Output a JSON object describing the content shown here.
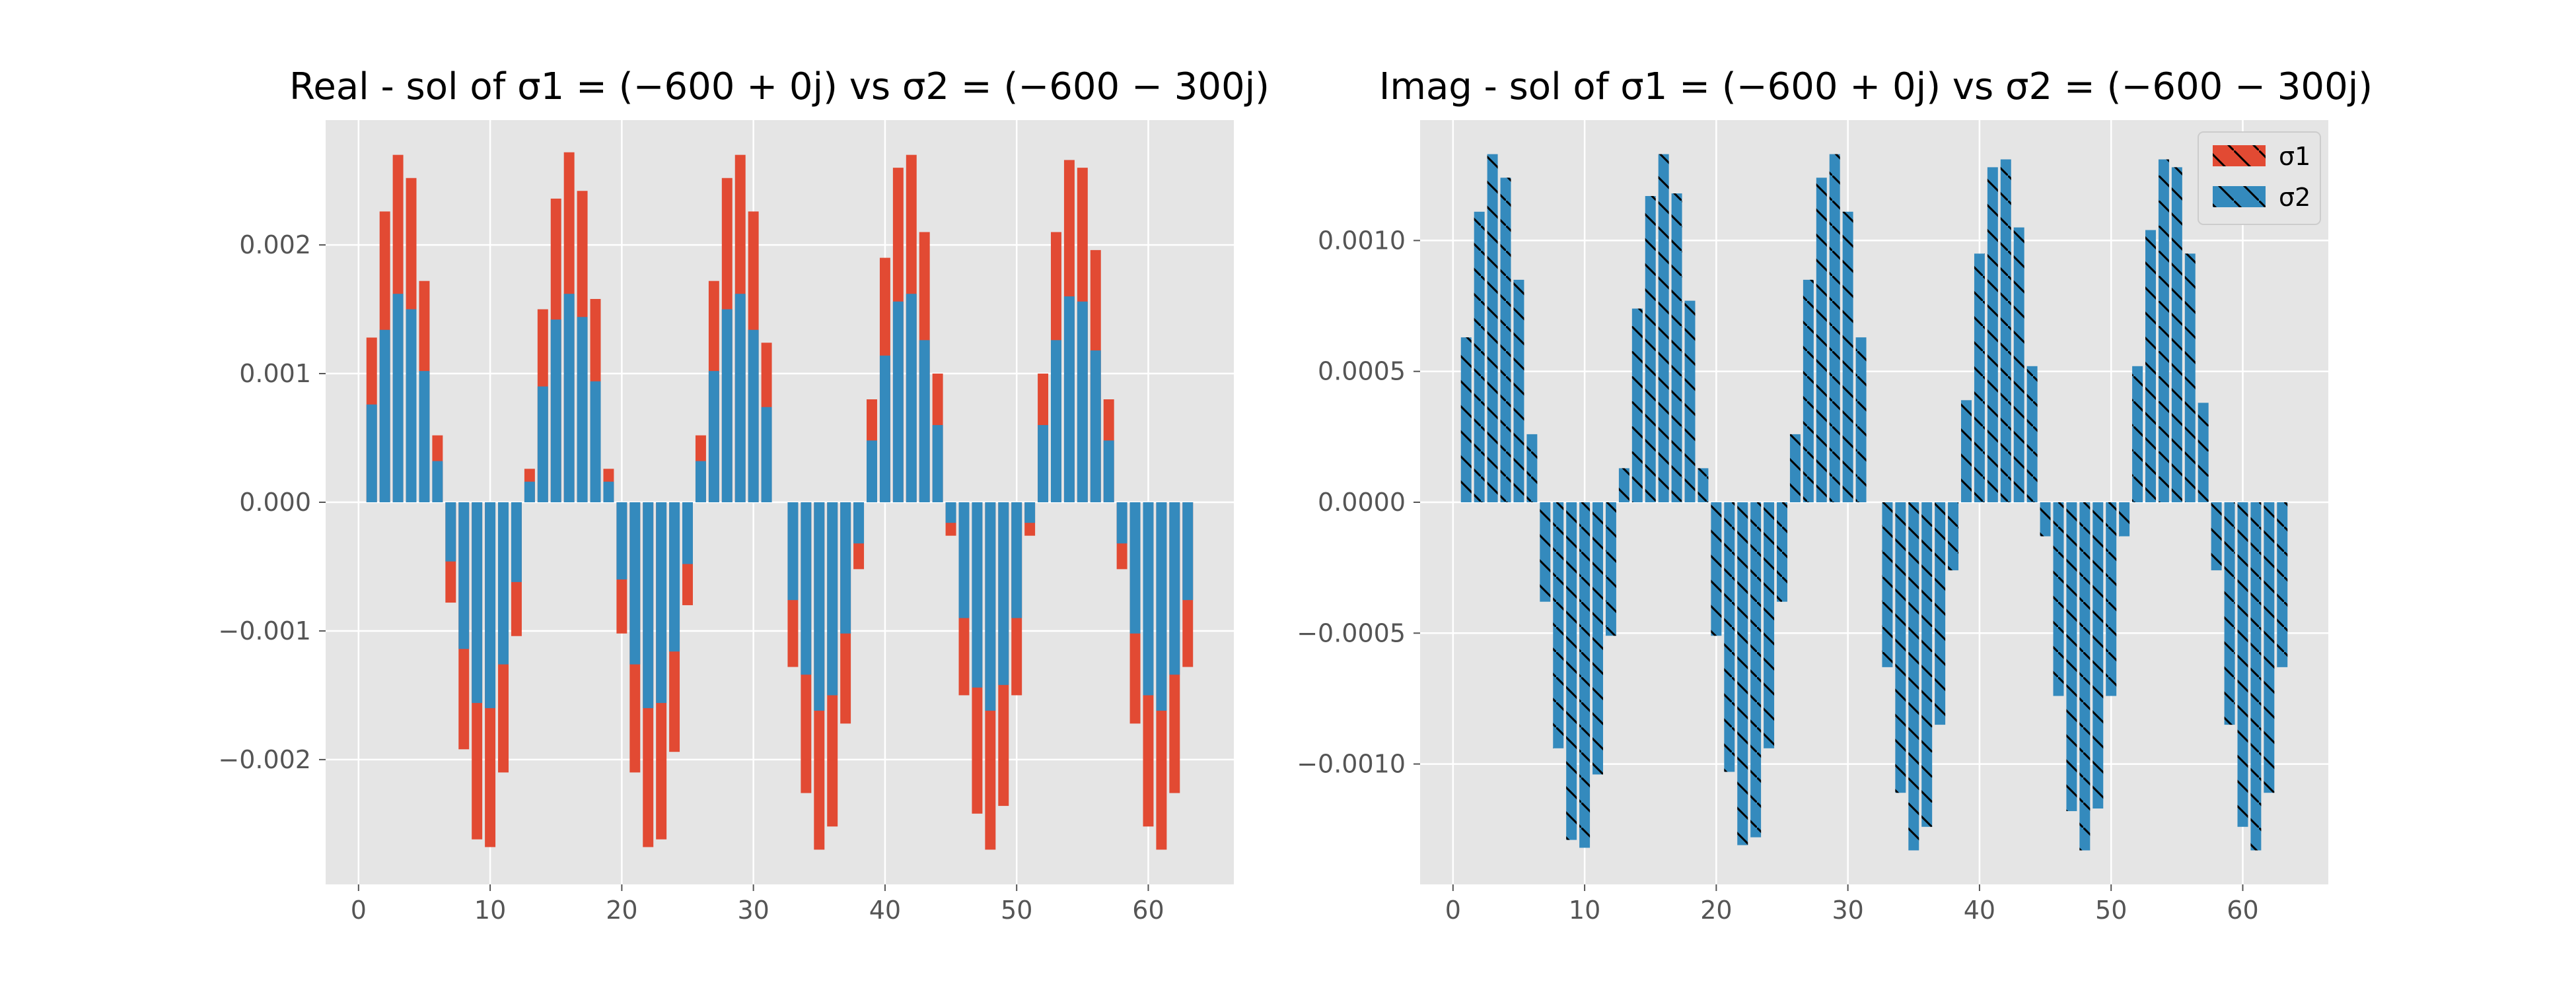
{
  "colors": {
    "sigma1": "#E24A33",
    "sigma2": "#348ABD",
    "axes_bg": "#E5E5E5",
    "grid": "#FFFFFF",
    "hatch": "#000000"
  },
  "legend": {
    "placement": "top-right",
    "entries": [
      "σ1",
      "σ2"
    ]
  },
  "chart_data": [
    {
      "type": "bar",
      "title": "Real - sol of σ1 = (−600 + 0j) vs σ2 = (−600 − 300j)",
      "xlim": [
        -2.5,
        66.5
      ],
      "ylim": [
        -0.00297,
        0.00297
      ],
      "xticks": [
        0,
        10,
        20,
        30,
        40,
        50,
        60
      ],
      "xtick_labels": [
        "0",
        "10",
        "20",
        "30",
        "40",
        "50",
        "60"
      ],
      "yticks": [
        -0.002,
        -0.001,
        0.0,
        0.001,
        0.002
      ],
      "ytick_labels": [
        "−0.002",
        "−0.001",
        "0.000",
        "0.001",
        "0.002"
      ],
      "grid": true,
      "hatch": false,
      "x": [
        1,
        2,
        3,
        4,
        5,
        6,
        7,
        8,
        9,
        10,
        11,
        12,
        13,
        14,
        15,
        16,
        17,
        18,
        19,
        20,
        21,
        22,
        23,
        24,
        25,
        26,
        27,
        28,
        29,
        30,
        31,
        32,
        33,
        34,
        35,
        36,
        37,
        38,
        39,
        40,
        41,
        42,
        43,
        44,
        45,
        46,
        47,
        48,
        49,
        50,
        51,
        52,
        53,
        54,
        55,
        56,
        57,
        58,
        59,
        60,
        61,
        62,
        63
      ],
      "series": [
        {
          "name": "σ1",
          "values": [
            0.00128,
            0.00226,
            0.0027,
            0.00252,
            0.00172,
            0.00052,
            -0.00078,
            -0.00192,
            -0.00262,
            -0.00268,
            -0.0021,
            -0.00104,
            0.00026,
            0.0015,
            0.00236,
            0.00272,
            0.00242,
            0.00158,
            0.00026,
            -0.00102,
            -0.0021,
            -0.00268,
            -0.00262,
            -0.00194,
            -0.0008,
            0.00052,
            0.00172,
            0.00252,
            0.0027,
            0.00226,
            0.00124,
            0.0,
            -0.00128,
            -0.00226,
            -0.0027,
            -0.00252,
            -0.00172,
            -0.00052,
            0.0008,
            0.0019,
            0.0026,
            0.0027,
            0.0021,
            0.001,
            -0.00026,
            -0.0015,
            -0.00242,
            -0.0027,
            -0.00236,
            -0.0015,
            -0.00026,
            0.001,
            0.0021,
            0.00266,
            0.0026,
            0.00196,
            0.0008,
            -0.00052,
            -0.00172,
            -0.00252,
            -0.0027,
            -0.00226,
            -0.00128
          ]
        },
        {
          "name": "σ2",
          "values": [
            0.00076,
            0.00134,
            0.00162,
            0.0015,
            0.00102,
            0.00032,
            -0.00046,
            -0.00114,
            -0.00156,
            -0.0016,
            -0.00126,
            -0.00062,
            0.00016,
            0.0009,
            0.00142,
            0.00162,
            0.00144,
            0.00094,
            0.00016,
            -0.0006,
            -0.00126,
            -0.0016,
            -0.00156,
            -0.00116,
            -0.00048,
            0.00032,
            0.00102,
            0.0015,
            0.00162,
            0.00134,
            0.00074,
            0.0,
            -0.00076,
            -0.00134,
            -0.00162,
            -0.0015,
            -0.00102,
            -0.00032,
            0.00048,
            0.00114,
            0.00156,
            0.00162,
            0.00126,
            0.0006,
            -0.00016,
            -0.0009,
            -0.00144,
            -0.00162,
            -0.00142,
            -0.0009,
            -0.00016,
            0.0006,
            0.00126,
            0.0016,
            0.00156,
            0.00118,
            0.00048,
            -0.00032,
            -0.00102,
            -0.0015,
            -0.00162,
            -0.00134,
            -0.00076
          ]
        }
      ]
    },
    {
      "type": "bar",
      "title": "Imag - sol of σ1 = (−600 + 0j) vs σ2 = (−600 − 300j)",
      "xlim": [
        -2.5,
        66.5
      ],
      "ylim": [
        -0.00146,
        0.00146
      ],
      "xticks": [
        0,
        10,
        20,
        30,
        40,
        50,
        60
      ],
      "xtick_labels": [
        "0",
        "10",
        "20",
        "30",
        "40",
        "50",
        "60"
      ],
      "yticks": [
        -0.001,
        -0.0005,
        0.0,
        0.0005,
        0.001
      ],
      "ytick_labels": [
        "−0.0010",
        "−0.0005",
        "0.0000",
        "0.0005",
        "0.0010"
      ],
      "grid": true,
      "hatch": true,
      "x": [
        1,
        2,
        3,
        4,
        5,
        6,
        7,
        8,
        9,
        10,
        11,
        12,
        13,
        14,
        15,
        16,
        17,
        18,
        19,
        20,
        21,
        22,
        23,
        24,
        25,
        26,
        27,
        28,
        29,
        30,
        31,
        32,
        33,
        34,
        35,
        36,
        37,
        38,
        39,
        40,
        41,
        42,
        43,
        44,
        45,
        46,
        47,
        48,
        49,
        50,
        51,
        52,
        53,
        54,
        55,
        56,
        57,
        58,
        59,
        60,
        61,
        62,
        63
      ],
      "series": [
        {
          "name": "σ1",
          "values": [
            0,
            0,
            0,
            0,
            0,
            0,
            0,
            0,
            0,
            0,
            0,
            0,
            0,
            0,
            0,
            0,
            0,
            0,
            0,
            0,
            0,
            0,
            0,
            0,
            0,
            0,
            0,
            0,
            0,
            0,
            0,
            0,
            0,
            0,
            0,
            0,
            0,
            0,
            0,
            0,
            0,
            0,
            0,
            0,
            0,
            0,
            0,
            0,
            0,
            0,
            0,
            0,
            0,
            0,
            0,
            0,
            0,
            0,
            0,
            0,
            0,
            0,
            0
          ]
        },
        {
          "name": "σ2",
          "values": [
            0.00063,
            0.00111,
            0.00133,
            0.00124,
            0.00085,
            0.00026,
            -0.00038,
            -0.00094,
            -0.00129,
            -0.00132,
            -0.00104,
            -0.00051,
            0.00013,
            0.00074,
            0.00117,
            0.00133,
            0.00118,
            0.00077,
            0.00013,
            -0.00051,
            -0.00103,
            -0.00131,
            -0.00128,
            -0.00094,
            -0.00038,
            0.00026,
            0.00085,
            0.00124,
            0.00133,
            0.00111,
            0.00063,
            0.0,
            -0.00063,
            -0.00111,
            -0.00133,
            -0.00124,
            -0.00085,
            -0.00026,
            0.00039,
            0.00095,
            0.00128,
            0.00131,
            0.00105,
            0.00052,
            -0.00013,
            -0.00074,
            -0.00118,
            -0.00133,
            -0.00117,
            -0.00074,
            -0.00013,
            0.00052,
            0.00104,
            0.00131,
            0.00128,
            0.00095,
            0.00038,
            -0.00026,
            -0.00085,
            -0.00124,
            -0.00133,
            -0.00111,
            -0.00063
          ]
        }
      ]
    }
  ]
}
